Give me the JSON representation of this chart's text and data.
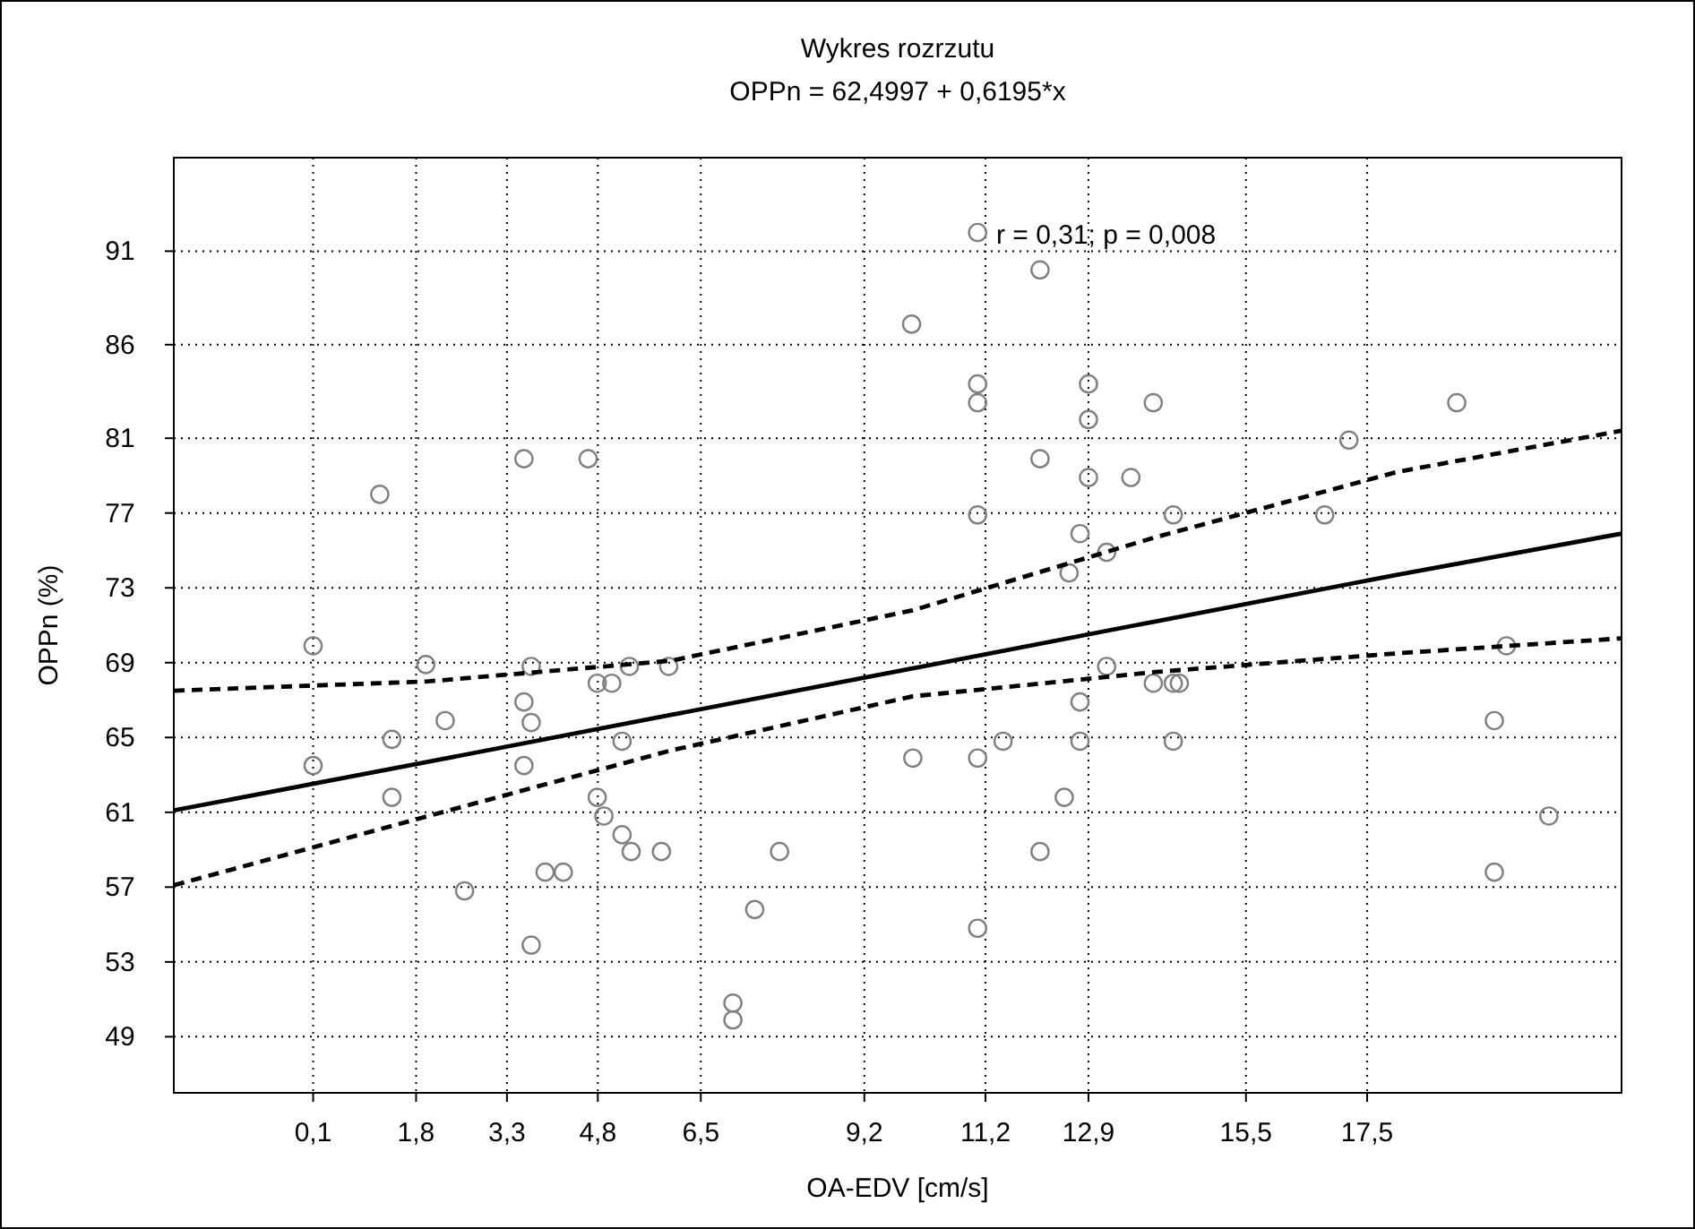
{
  "chart_data": {
    "type": "scatter",
    "title": "Wykres rozrzutu",
    "subtitle": "OPPn = 62,4997 + 0,6195*x",
    "xlabel": "OA-EDV [cm/s]",
    "ylabel": "OPPn (%)",
    "annotations": [
      "r = 0,31; p = 0,008"
    ],
    "xlim": [
      -2.2,
      21.7
    ],
    "ylim": [
      46,
      96
    ],
    "xticks": [
      {
        "value": 0.1,
        "label": "0,1"
      },
      {
        "value": 1.8,
        "label": "1,8"
      },
      {
        "value": 3.3,
        "label": "3,3"
      },
      {
        "value": 4.8,
        "label": "4,8"
      },
      {
        "value": 6.5,
        "label": "6,5"
      },
      {
        "value": 9.2,
        "label": "9,2"
      },
      {
        "value": 11.2,
        "label": "11,2"
      },
      {
        "value": 12.9,
        "label": "12,9"
      },
      {
        "value": 15.5,
        "label": "15,5"
      },
      {
        "value": 17.5,
        "label": "17,5"
      }
    ],
    "yticks": [
      49,
      53,
      57,
      61,
      65,
      69,
      73,
      77,
      81,
      86,
      91
    ],
    "grid": true,
    "marker": "circle",
    "series": [
      {
        "color": "#808080",
        "x": [
          0.1,
          0.1,
          1.2,
          1.4,
          1.4,
          1.96,
          2.28,
          2.6,
          3.58,
          3.58,
          3.58,
          3.7,
          3.7,
          3.7,
          3.93,
          4.23,
          4.64,
          4.79,
          4.79,
          4.9,
          5.03,
          5.2,
          5.2,
          5.32,
          5.35,
          5.85,
          5.97,
          7.03,
          7.03,
          7.39,
          7.8,
          9.98,
          10.0,
          11.07,
          11.07,
          11.07,
          11.07,
          11.07,
          11.07,
          11.49,
          12.1,
          12.1,
          12.1,
          12.5,
          12.58,
          12.76,
          12.76,
          12.76,
          12.9,
          12.9,
          12.9,
          13.2,
          13.2,
          13.6,
          13.97,
          13.97,
          14.3,
          14.3,
          14.3,
          14.4,
          16.8,
          17.2,
          18.98,
          19.6,
          19.6,
          19.8,
          20.5
        ],
        "values": [
          69.9,
          63.5,
          78.0,
          64.9,
          61.8,
          68.9,
          65.9,
          56.8,
          79.9,
          66.9,
          63.5,
          68.8,
          65.8,
          53.9,
          57.8,
          57.8,
          79.9,
          67.9,
          61.8,
          60.8,
          67.9,
          64.8,
          59.8,
          68.8,
          58.9,
          58.9,
          68.8,
          50.8,
          49.9,
          55.8,
          58.9,
          87.1,
          63.9,
          92.0,
          83.9,
          82.9,
          76.9,
          63.9,
          54.8,
          64.8,
          90.0,
          79.9,
          58.9,
          61.8,
          73.8,
          75.9,
          66.9,
          64.8,
          83.9,
          82.0,
          78.9,
          74.9,
          68.8,
          78.9,
          82.9,
          67.9,
          76.9,
          67.9,
          64.8,
          67.9,
          76.9,
          80.9,
          82.9,
          65.9,
          57.8,
          69.9,
          60.8
        ]
      },
      {
        "type": "line",
        "color": "#000000",
        "marker": "none",
        "line_style": "solid",
        "x": [
          -2.2,
          2,
          6,
          10,
          14,
          18,
          21.7
        ],
        "values": [
          61.1,
          63.7,
          66.2,
          68.7,
          71.2,
          73.7,
          75.9
        ]
      },
      {
        "type": "line",
        "color": "#000000",
        "marker": "none",
        "line_style": "dashed",
        "x": [
          -2.2,
          2,
          6,
          10,
          14,
          18,
          21.7
        ],
        "values": [
          57.1,
          60.8,
          64.3,
          67.2,
          68.5,
          69.5,
          70.3
        ]
      },
      {
        "type": "line",
        "color": "#000000",
        "marker": "none",
        "line_style": "dashed",
        "x": [
          -2.2,
          2,
          6,
          10,
          14,
          18,
          21.7
        ],
        "values": [
          67.5,
          68.0,
          69.1,
          71.8,
          75.7,
          79.2,
          81.4
        ]
      }
    ]
  }
}
